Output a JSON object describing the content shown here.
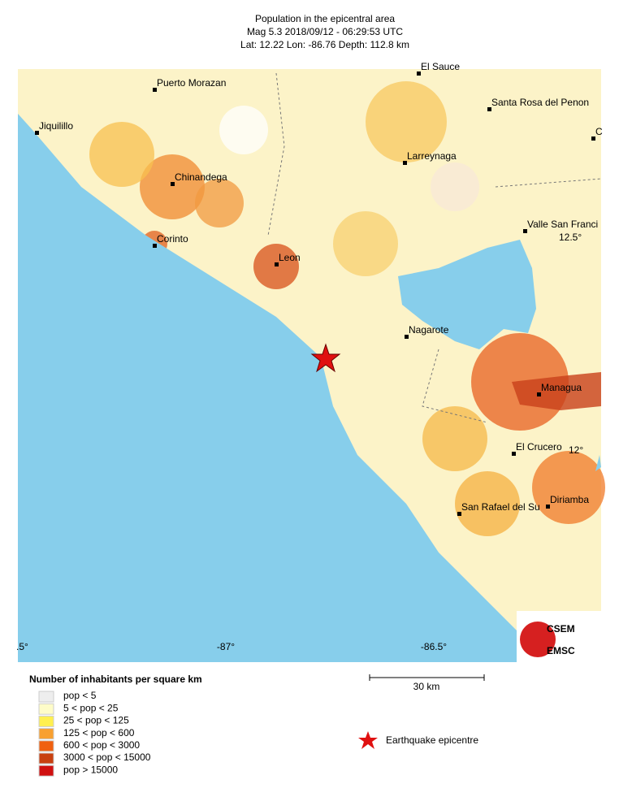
{
  "header": {
    "title": "Population in the epicentral area",
    "line2": "Mag 5.3  2018/09/12 - 06:29:53 UTC",
    "line3": "Lat: 12.22    Lon: -86.76     Depth: 112.8 km"
  },
  "map": {
    "places": [
      "Puerto Morazan",
      "El Sauce",
      "Santa Rosa del Penon",
      "Jiquilillo",
      "Chinandega",
      "Larreynaga",
      "C",
      "Valle San Franci",
      "Corinto",
      "Leon",
      "Nagarote",
      "Managua",
      "El Crucero",
      "San Rafael del Su",
      "Diriamba"
    ],
    "graticule": [
      ".5°",
      "-87°",
      "-86.5°",
      "12.5°",
      "12°"
    ]
  },
  "scale": "30 km",
  "logo": [
    "CSEM",
    "EMSC"
  ],
  "legend": {
    "title": "Number of inhabitants per square km",
    "items": [
      "pop < 5",
      "5 < pop < 25",
      "25 < pop < 125",
      "125 < pop < 600",
      "600 < pop < 3000",
      "3000 < pop < 15000",
      "pop > 15000"
    ],
    "epicentre": "Earthquake epicentre"
  }
}
